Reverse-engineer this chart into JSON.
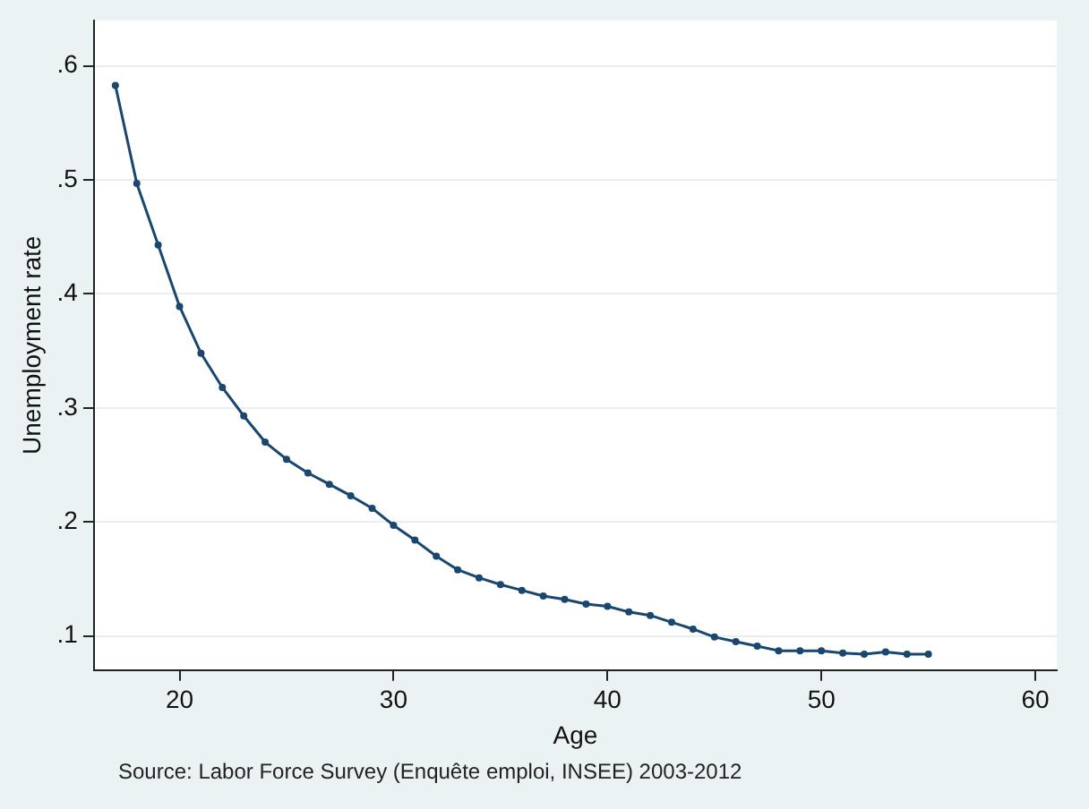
{
  "chart_data": {
    "type": "line",
    "xlabel": "Age",
    "ylabel": "Unemployment rate",
    "annotations": [
      "Source: Labor Force Survey (Enquête emploi, INSEE) 2003-2012"
    ],
    "x": [
      17,
      18,
      19,
      20,
      21,
      22,
      23,
      24,
      25,
      26,
      27,
      28,
      29,
      30,
      31,
      32,
      33,
      34,
      35,
      36,
      37,
      38,
      39,
      40,
      41,
      42,
      43,
      44,
      45,
      46,
      47,
      48,
      49,
      50,
      51,
      52,
      53,
      54,
      55
    ],
    "series": [
      {
        "color": "#1a476f",
        "values": [
          0.583,
          0.497,
          0.443,
          0.389,
          0.348,
          0.318,
          0.293,
          0.27,
          0.255,
          0.243,
          0.233,
          0.223,
          0.212,
          0.197,
          0.184,
          0.17,
          0.158,
          0.151,
          0.145,
          0.14,
          0.135,
          0.132,
          0.128,
          0.126,
          0.121,
          0.118,
          0.112,
          0.106,
          0.099,
          0.095,
          0.091,
          0.087,
          0.087,
          0.087,
          0.085,
          0.084,
          0.086,
          0.084,
          0.084
        ]
      }
    ],
    "xlim": [
      16,
      61
    ],
    "xticks": [
      20,
      30,
      40,
      50,
      60
    ],
    "ylim": [
      0.07,
      0.64
    ],
    "yticks": [
      {
        "value": 0.1,
        "label": ".1"
      },
      {
        "value": 0.2,
        "label": ".2"
      },
      {
        "value": 0.3,
        "label": ".3"
      },
      {
        "value": 0.4,
        "label": ".4"
      },
      {
        "value": 0.5,
        "label": ".5"
      },
      {
        "value": 0.6,
        "label": ".6"
      }
    ],
    "grid": "y",
    "marker": "circle",
    "line_style": "solid",
    "legend": false
  }
}
